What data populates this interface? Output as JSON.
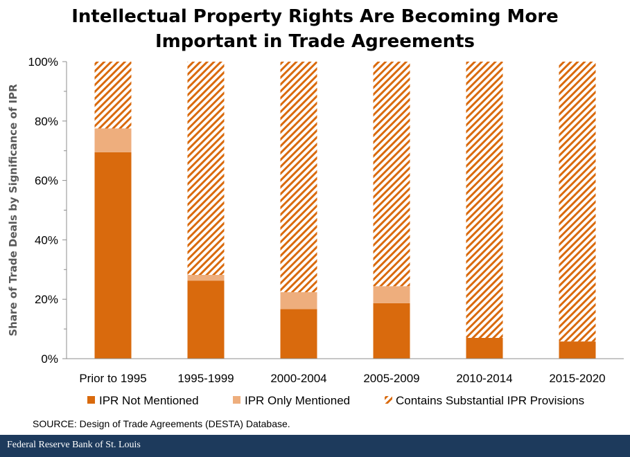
{
  "title_lines": [
    "Intellectual Property Rights Are Becoming More",
    "Important in Trade Agreements"
  ],
  "source": "SOURCE: Design of Trade Agreements (DESTA) Database.",
  "footer": "Federal Reserve Bank of St. Louis",
  "colors": {
    "not_mentioned": "#d96a0d",
    "only_mentioned": "#eeae7d",
    "substantial": "#d96a0d"
  },
  "chart_data": {
    "type": "bar",
    "stacked": true,
    "title": "Intellectual Property Rights Are Becoming More Important in Trade Agreements",
    "xlabel": "",
    "ylabel": "Share of Trade Deals by Significance of IPR",
    "ylim": [
      0,
      100
    ],
    "ytick_values": [
      0,
      20,
      40,
      60,
      80,
      100
    ],
    "ytick_labels": [
      "0%",
      "20%",
      "40%",
      "60%",
      "80%",
      "100%"
    ],
    "categories": [
      "Prior to 1995",
      "1995-1999",
      "2000-2004",
      "2005-2009",
      "2010-2014",
      "2015-2020"
    ],
    "series": [
      {
        "name": "IPR Not Mentioned",
        "pattern": "solid",
        "values": [
          69.5,
          26.3,
          16.7,
          18.7,
          7.0,
          5.8
        ]
      },
      {
        "name": "IPR Only Mentioned",
        "pattern": "solid-light",
        "values": [
          8.0,
          1.9,
          5.7,
          5.7,
          0.0,
          0.0
        ]
      },
      {
        "name": "Contains Substantial IPR Provisions",
        "pattern": "hatched",
        "values": [
          22.5,
          71.8,
          77.6,
          75.6,
          93.0,
          94.2
        ]
      }
    ],
    "legend_position": "bottom"
  }
}
